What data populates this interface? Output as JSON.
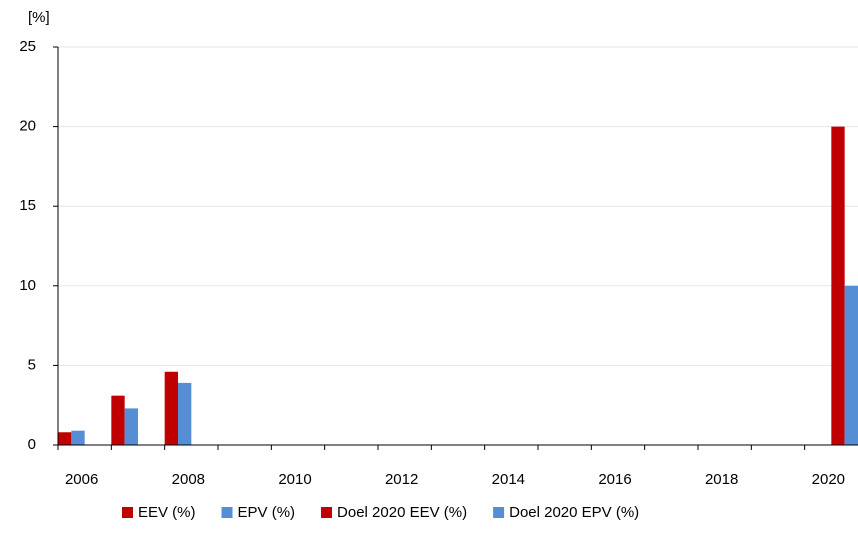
{
  "chart_data": {
    "type": "bar",
    "y_label": "[%]",
    "categories": [
      "2006",
      null,
      "2008",
      null,
      "2010",
      null,
      "2012",
      null,
      "2014",
      null,
      "2016",
      null,
      "2018",
      null,
      "2020"
    ],
    "series": [
      {
        "name": "EEV (%)",
        "color": "#c00000",
        "values": [
          0.8,
          3.1,
          4.6,
          null,
          null,
          null,
          null,
          null,
          null,
          null,
          null,
          null,
          null,
          null,
          null
        ]
      },
      {
        "name": "EPV (%)",
        "color": "#558ed5",
        "values": [
          0.9,
          2.3,
          3.9,
          null,
          null,
          null,
          null,
          null,
          null,
          null,
          null,
          null,
          null,
          null,
          null
        ]
      },
      {
        "name": "Doel 2020 EEV (%)",
        "color": "#c00000",
        "values": [
          null,
          null,
          null,
          null,
          null,
          null,
          null,
          null,
          null,
          null,
          null,
          null,
          null,
          null,
          20
        ]
      },
      {
        "name": "Doel 2020 EPV (%)",
        "color": "#558ed5",
        "values": [
          null,
          null,
          null,
          null,
          null,
          null,
          null,
          null,
          null,
          null,
          null,
          null,
          null,
          null,
          10
        ]
      }
    ],
    "ylim": [
      0,
      25
    ],
    "yticks": [
      0,
      5,
      10,
      15,
      20,
      25
    ],
    "grid": true,
    "legend": "bottom"
  }
}
